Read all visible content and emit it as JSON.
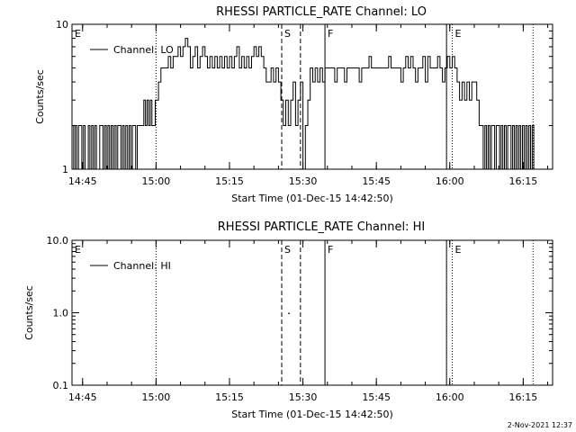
{
  "timestamp": "2-Nov-2021 12:37",
  "chart_data": [
    {
      "type": "line",
      "title": "RHESSI PARTICLE_RATE Channel: LO",
      "xlabel": "Start Time (01-Dec-15 14:42:50)",
      "ylabel": "Counts/sec",
      "y_scale": "log",
      "ylim": [
        1,
        10
      ],
      "y_ticks": [
        "1",
        "10"
      ],
      "xlim": [
        "14:42:50",
        "16:21:00"
      ],
      "x_ticks": [
        "14:45",
        "15:00",
        "15:15",
        "15:30",
        "15:45",
        "16:00",
        "16:15"
      ],
      "legend": "Channel: LO",
      "legend_position": "top-left",
      "series": [
        {
          "name": "Channel: LO",
          "points": [
            [
              "14:42:50",
              2
            ],
            [
              "14:43:10",
              1
            ],
            [
              "14:43:30",
              2
            ],
            [
              "14:43:50",
              1
            ],
            [
              "14:44:10",
              2
            ],
            [
              "14:44:30",
              2
            ],
            [
              "14:44:50",
              1
            ],
            [
              "14:45:10",
              2
            ],
            [
              "14:45:30",
              1
            ],
            [
              "14:45:50",
              1
            ],
            [
              "14:46:10",
              2
            ],
            [
              "14:46:30",
              1
            ],
            [
              "14:46:50",
              2
            ],
            [
              "14:47:10",
              1
            ],
            [
              "14:47:30",
              2
            ],
            [
              "14:47:50",
              1
            ],
            [
              "14:48:10",
              1
            ],
            [
              "14:48:30",
              2
            ],
            [
              "14:48:50",
              2
            ],
            [
              "14:49:10",
              1
            ],
            [
              "14:49:30",
              2
            ],
            [
              "14:49:50",
              1
            ],
            [
              "14:50:10",
              2
            ],
            [
              "14:50:30",
              1
            ],
            [
              "14:50:50",
              2
            ],
            [
              "14:51:10",
              1
            ],
            [
              "14:51:30",
              2
            ],
            [
              "14:51:50",
              1
            ],
            [
              "14:52:10",
              2
            ],
            [
              "14:52:30",
              2
            ],
            [
              "14:52:50",
              1
            ],
            [
              "14:53:10",
              2
            ],
            [
              "14:53:30",
              1
            ],
            [
              "14:53:50",
              2
            ],
            [
              "14:54:10",
              1
            ],
            [
              "14:54:30",
              2
            ],
            [
              "14:54:50",
              1
            ],
            [
              "14:55:10",
              2
            ],
            [
              "14:55:30",
              2
            ],
            [
              "14:55:50",
              1
            ],
            [
              "14:56:10",
              2
            ],
            [
              "14:56:30",
              2
            ],
            [
              "14:56:50",
              2
            ],
            [
              "14:57:10",
              2
            ],
            [
              "14:57:30",
              3
            ],
            [
              "14:57:50",
              2
            ],
            [
              "14:58:10",
              3
            ],
            [
              "14:58:30",
              2
            ],
            [
              "14:58:50",
              3
            ],
            [
              "14:59:10",
              2
            ],
            [
              "14:59:30",
              2
            ],
            [
              "14:59:50",
              3
            ],
            [
              "15:00:10",
              3
            ],
            [
              "15:00:30",
              4
            ],
            [
              "15:01:00",
              5
            ],
            [
              "15:02:00",
              5
            ],
            [
              "15:02:30",
              6
            ],
            [
              "15:03:00",
              5
            ],
            [
              "15:03:30",
              6
            ],
            [
              "15:04:00",
              6
            ],
            [
              "15:04:30",
              7
            ],
            [
              "15:05:00",
              6
            ],
            [
              "15:05:30",
              7
            ],
            [
              "15:06:00",
              8
            ],
            [
              "15:06:30",
              7
            ],
            [
              "15:07:00",
              5
            ],
            [
              "15:07:30",
              6
            ],
            [
              "15:08:00",
              7
            ],
            [
              "15:08:30",
              5
            ],
            [
              "15:09:00",
              6
            ],
            [
              "15:09:30",
              7
            ],
            [
              "15:10:00",
              6
            ],
            [
              "15:10:30",
              5
            ],
            [
              "15:11:00",
              6
            ],
            [
              "15:11:30",
              5
            ],
            [
              "15:12:00",
              6
            ],
            [
              "15:12:30",
              5
            ],
            [
              "15:13:00",
              6
            ],
            [
              "15:13:30",
              5
            ],
            [
              "15:14:00",
              6
            ],
            [
              "15:14:30",
              5
            ],
            [
              "15:15:00",
              6
            ],
            [
              "15:15:30",
              5
            ],
            [
              "15:16:00",
              6
            ],
            [
              "15:16:30",
              7
            ],
            [
              "15:17:00",
              5
            ],
            [
              "15:17:30",
              6
            ],
            [
              "15:18:00",
              5
            ],
            [
              "15:18:30",
              6
            ],
            [
              "15:19:00",
              5
            ],
            [
              "15:19:30",
              6
            ],
            [
              "15:20:00",
              7
            ],
            [
              "15:20:30",
              6
            ],
            [
              "15:21:00",
              7
            ],
            [
              "15:21:30",
              6
            ],
            [
              "15:22:00",
              5
            ],
            [
              "15:22:30",
              4
            ],
            [
              "15:23:00",
              4
            ],
            [
              "15:23:30",
              5
            ],
            [
              "15:24:00",
              4
            ],
            [
              "15:24:30",
              5
            ],
            [
              "15:25:00",
              4
            ],
            [
              "15:25:30",
              3
            ],
            [
              "15:26:00",
              2
            ],
            [
              "15:26:30",
              3
            ],
            [
              "15:27:00",
              2
            ],
            [
              "15:27:30",
              3
            ],
            [
              "15:28:00",
              4
            ],
            [
              "15:28:30",
              2
            ],
            [
              "15:29:00",
              3
            ],
            [
              "15:29:30",
              4
            ],
            [
              "15:30:00",
              1
            ],
            [
              "15:30:30",
              2
            ],
            [
              "15:31:00",
              3
            ],
            [
              "15:31:30",
              5
            ],
            [
              "15:32:00",
              4
            ],
            [
              "15:32:30",
              5
            ],
            [
              "15:33:00",
              4
            ],
            [
              "15:33:30",
              5
            ],
            [
              "15:34:00",
              4
            ],
            [
              "15:34:30",
              5
            ],
            [
              "15:35:00",
              5
            ],
            [
              "15:36:00",
              5
            ],
            [
              "15:36:30",
              4
            ],
            [
              "15:37:00",
              5
            ],
            [
              "15:38:00",
              5
            ],
            [
              "15:38:30",
              4
            ],
            [
              "15:39:00",
              5
            ],
            [
              "15:40:00",
              5
            ],
            [
              "15:41:00",
              5
            ],
            [
              "15:41:30",
              4
            ],
            [
              "15:42:00",
              5
            ],
            [
              "15:43:00",
              5
            ],
            [
              "15:43:30",
              6
            ],
            [
              "15:44:00",
              5
            ],
            [
              "15:45:00",
              5
            ],
            [
              "15:46:00",
              5
            ],
            [
              "15:47:00",
              5
            ],
            [
              "15:47:30",
              6
            ],
            [
              "15:48:00",
              5
            ],
            [
              "15:49:00",
              5
            ],
            [
              "15:50:00",
              4
            ],
            [
              "15:50:30",
              5
            ],
            [
              "15:51:00",
              6
            ],
            [
              "15:51:30",
              5
            ],
            [
              "15:52:00",
              6
            ],
            [
              "15:52:30",
              5
            ],
            [
              "15:53:00",
              4
            ],
            [
              "15:53:30",
              5
            ],
            [
              "15:54:00",
              5
            ],
            [
              "15:54:30",
              6
            ],
            [
              "15:55:00",
              4
            ],
            [
              "15:55:30",
              6
            ],
            [
              "15:56:00",
              5
            ],
            [
              "15:57:00",
              5
            ],
            [
              "15:57:30",
              6
            ],
            [
              "15:58:00",
              5
            ],
            [
              "15:58:30",
              4
            ],
            [
              "15:59:00",
              5
            ],
            [
              "15:59:30",
              6
            ],
            [
              "16:00:00",
              5
            ],
            [
              "16:00:30",
              6
            ],
            [
              "16:01:00",
              5
            ],
            [
              "16:01:30",
              4
            ],
            [
              "16:02:00",
              3
            ],
            [
              "16:02:30",
              4
            ],
            [
              "16:03:00",
              3
            ],
            [
              "16:03:30",
              4
            ],
            [
              "16:04:00",
              3
            ],
            [
              "16:04:30",
              4
            ],
            [
              "16:05:00",
              4
            ],
            [
              "16:05:30",
              3
            ],
            [
              "16:06:00",
              2
            ],
            [
              "16:06:30",
              2
            ],
            [
              "16:06:50",
              1
            ],
            [
              "16:07:10",
              2
            ],
            [
              "16:07:30",
              1
            ],
            [
              "16:07:50",
              2
            ],
            [
              "16:08:10",
              1
            ],
            [
              "16:08:30",
              2
            ],
            [
              "16:08:50",
              2
            ],
            [
              "16:09:10",
              1
            ],
            [
              "16:09:30",
              2
            ],
            [
              "16:09:50",
              2
            ],
            [
              "16:10:10",
              1
            ],
            [
              "16:10:30",
              2
            ],
            [
              "16:10:50",
              1
            ],
            [
              "16:11:10",
              2
            ],
            [
              "16:11:30",
              1
            ],
            [
              "16:11:50",
              2
            ],
            [
              "16:12:10",
              2
            ],
            [
              "16:12:30",
              1
            ],
            [
              "16:12:50",
              2
            ],
            [
              "16:13:10",
              1
            ],
            [
              "16:13:30",
              2
            ],
            [
              "16:13:50",
              1
            ],
            [
              "16:14:10",
              2
            ],
            [
              "16:14:30",
              1
            ],
            [
              "16:14:50",
              2
            ],
            [
              "16:15:10",
              1
            ],
            [
              "16:15:30",
              2
            ],
            [
              "16:15:50",
              1
            ],
            [
              "16:16:10",
              2
            ],
            [
              "16:16:30",
              1
            ],
            [
              "16:16:50",
              2
            ],
            [
              "16:17:10",
              1
            ]
          ]
        }
      ],
      "markers": [
        {
          "label": "E",
          "time": "14:42:50",
          "style": "dotted"
        },
        {
          "label": "",
          "time": "15:00:00",
          "style": "dotted"
        },
        {
          "label": "S",
          "time": "15:25:40",
          "style": "dashed"
        },
        {
          "label": "",
          "time": "15:29:30",
          "style": "dashed"
        },
        {
          "label": "F",
          "time": "15:34:30",
          "style": "solid"
        },
        {
          "label": "",
          "time": "15:59:20",
          "style": "solid"
        },
        {
          "label": "E",
          "time": "16:00:30",
          "style": "dotted"
        },
        {
          "label": "",
          "time": "16:17:00",
          "style": "dotted"
        }
      ]
    },
    {
      "type": "line",
      "title": "RHESSI PARTICLE_RATE Channel: HI",
      "xlabel": "Start Time (01-Dec-15 14:42:50)",
      "ylabel": "Counts/sec",
      "y_scale": "log",
      "ylim": [
        0.1,
        10
      ],
      "y_ticks": [
        "0.1",
        "1.0",
        "10.0"
      ],
      "xlim": [
        "14:42:50",
        "16:21:00"
      ],
      "x_ticks": [
        "14:45",
        "15:00",
        "15:15",
        "15:30",
        "15:45",
        "16:00",
        "16:15"
      ],
      "legend": "Channel: HI",
      "legend_position": "top-left",
      "series": [
        {
          "name": "Channel: HI",
          "points": [
            [
              "15:27:00",
              1.0
            ]
          ]
        }
      ],
      "markers": [
        {
          "label": "E",
          "time": "14:42:50",
          "style": "dotted"
        },
        {
          "label": "",
          "time": "15:00:00",
          "style": "dotted"
        },
        {
          "label": "S",
          "time": "15:25:40",
          "style": "dashed"
        },
        {
          "label": "",
          "time": "15:29:30",
          "style": "dashed"
        },
        {
          "label": "F",
          "time": "15:34:30",
          "style": "solid"
        },
        {
          "label": "",
          "time": "15:59:20",
          "style": "solid"
        },
        {
          "label": "E",
          "time": "16:00:30",
          "style": "dotted"
        },
        {
          "label": "",
          "time": "16:17:00",
          "style": "dotted"
        }
      ]
    }
  ]
}
